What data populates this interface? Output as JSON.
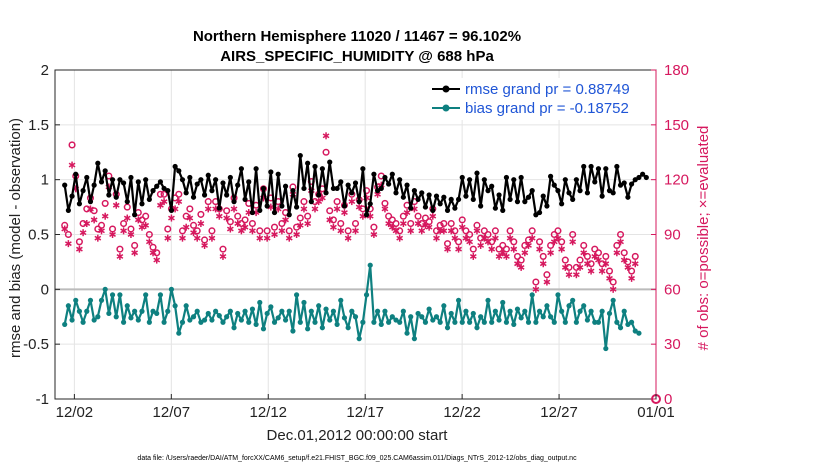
{
  "chart_data": {
    "type": "line",
    "title_line1": "Northern Hemisphere 11020 / 11467 = 96.102%",
    "title_line2": "AIRS_SPECIFIC_HUMIDITY @ 688 hPa",
    "xlabel": "Dec.01,2012 00:00:00 start",
    "ylabel_left": "rmse and bias (model - observation)",
    "ylabel_right": "# of obs: o=possible; ×=evaluated",
    "footer": "data file: /Users/raeder/DAI/ATM_forcXX/CAM6_setup/f.e21.FHIST_BGC.f09_025.CAM6assim.011/Diags_NTrS_2012-12/obs_diag_output.nc",
    "x_ticks": [
      "12/02",
      "12/07",
      "12/12",
      "12/17",
      "12/22",
      "12/27",
      "01/01"
    ],
    "x_tick_days": [
      1,
      6,
      11,
      16,
      21,
      26,
      31
    ],
    "xlim": [
      0,
      31
    ],
    "ylim_left": [
      -1,
      2
    ],
    "y_ticks_left": [
      "-1",
      "-0.5",
      "0",
      "0.5",
      "1",
      "1.5",
      "2"
    ],
    "ylim_right": [
      0,
      180
    ],
    "y_ticks_right": [
      "0",
      "30",
      "60",
      "90",
      "120",
      "150",
      "180"
    ],
    "colors": {
      "rmse": "#000000",
      "bias": "#0e8080",
      "obs": "#d6185e",
      "legend_text": "#1f55d6",
      "zero_line": "#bbbbbb",
      "grid": "#e4e4e4"
    },
    "series": [
      {
        "name": "rmse grand pr = 0.88749",
        "axis": "left",
        "color": "#000000",
        "values": [
          0.95,
          0.72,
          0.85,
          1.05,
          0.78,
          0.9,
          1.02,
          0.8,
          0.95,
          1.15,
          0.98,
          1.08,
          0.86,
          1.0,
          0.84,
          1.0,
          0.97,
          0.8,
          1.02,
          0.68,
          0.98,
          0.78,
          1.0,
          0.82,
          0.9,
          0.94,
          0.98,
          0.92,
          0.9,
          0.72,
          1.12,
          1.08,
          1.0,
          0.88,
          1.02,
          0.84,
          0.96,
          1.0,
          0.86,
          1.04,
          0.9,
          1.0,
          0.74,
          0.97,
          0.86,
          1.02,
          0.8,
          0.95,
          1.1,
          0.82,
          0.98,
          0.7,
          1.1,
          0.72,
          0.92,
          0.76,
          1.07,
          0.7,
          1.05,
          0.76,
          0.94,
          0.68,
          0.9,
          0.75,
          1.22,
          0.92,
          1.15,
          0.8,
          1.12,
          0.86,
          1.1,
          0.88,
          1.16,
          0.92,
          0.92,
          0.98,
          0.76,
          0.95,
          0.88,
          0.97,
          0.8,
          1.1,
          0.68,
          0.78,
          1.05,
          0.9,
          0.92,
          1.02,
          0.96,
          1.05,
          0.88,
          1.0,
          0.84,
          0.95,
          0.74,
          0.9,
          0.82,
          0.88,
          0.75,
          0.86,
          0.72,
          0.85,
          0.78,
          0.84,
          0.72,
          0.82,
          0.74,
          0.82,
          1.02,
          0.85,
          1.0,
          0.82,
          1.06,
          0.76,
          1.0,
          0.9,
          0.94,
          0.74,
          0.86,
          0.72,
          1.02,
          0.82,
          1.0,
          0.8,
          1.02,
          0.8,
          0.84,
          0.9,
          0.68,
          0.7,
          0.85,
          0.76,
          1.03,
          0.95,
          0.9,
          0.78,
          1.0,
          0.88,
          0.82,
          1.0,
          0.9,
          1.12,
          0.88,
          1.12,
          0.98,
          1.1,
          0.85,
          1.1,
          0.9,
          0.88,
          1.12,
          0.95,
          0.97,
          0.84,
          0.96,
          1.0,
          1.02,
          1.05,
          1.02
        ]
      },
      {
        "name": "bias grand pr = -0.18752",
        "axis": "left",
        "color": "#0e8080",
        "values": [
          -0.32,
          -0.15,
          -0.28,
          -0.1,
          -0.2,
          -0.3,
          -0.2,
          -0.1,
          -0.28,
          -0.25,
          -0.1,
          0.0,
          -0.22,
          -0.05,
          -0.25,
          -0.05,
          -0.3,
          -0.15,
          -0.26,
          -0.2,
          -0.28,
          -0.2,
          -0.05,
          -0.3,
          -0.2,
          -0.22,
          -0.05,
          -0.3,
          -0.2,
          0.0,
          -0.15,
          -0.4,
          -0.3,
          -0.15,
          -0.28,
          -0.25,
          -0.2,
          -0.3,
          -0.28,
          -0.22,
          -0.28,
          -0.2,
          -0.24,
          -0.3,
          -0.25,
          -0.2,
          -0.35,
          -0.22,
          -0.28,
          -0.2,
          -0.3,
          -0.18,
          -0.32,
          -0.12,
          -0.36,
          -0.22,
          -0.16,
          -0.3,
          -0.26,
          -0.2,
          -0.28,
          -0.2,
          -0.38,
          -0.05,
          -0.3,
          -0.12,
          -0.36,
          -0.2,
          -0.3,
          -0.15,
          -0.35,
          -0.18,
          -0.28,
          -0.2,
          -0.32,
          -0.1,
          -0.26,
          -0.35,
          -0.2,
          -0.25,
          -0.45,
          -0.3,
          -0.05,
          0.22,
          -0.3,
          -0.2,
          -0.32,
          -0.2,
          -0.3,
          -0.25,
          -0.28,
          -0.3,
          -0.2,
          -0.4,
          -0.25,
          -0.45,
          -0.22,
          -0.25,
          -0.3,
          -0.18,
          -0.28,
          -0.25,
          -0.3,
          -0.15,
          -0.35,
          -0.22,
          -0.3,
          -0.1,
          -0.3,
          -0.2,
          -0.3,
          -0.22,
          -0.35,
          -0.25,
          -0.3,
          -0.1,
          -0.3,
          -0.2,
          -0.28,
          -0.12,
          -0.3,
          -0.2,
          -0.32,
          -0.18,
          -0.26,
          -0.2,
          -0.3,
          -0.05,
          -0.3,
          -0.2,
          -0.25,
          -0.15,
          -0.25,
          -0.3,
          -0.05,
          -0.2,
          -0.3,
          -0.15,
          -0.1,
          -0.3,
          -0.2,
          -0.15,
          -0.28,
          -0.2,
          -0.3,
          -0.3,
          -0.2,
          -0.54,
          -0.22,
          -0.1,
          -0.3,
          -0.35,
          -0.2,
          -0.32,
          -0.3,
          -0.38,
          -0.4
        ]
      },
      {
        "name": "obs possible",
        "axis": "right",
        "marker": "o",
        "color": "#d6185e",
        "values": [
          95,
          90,
          139,
          122,
          86,
          96,
          104,
          110,
          103,
          93,
          95,
          107,
          122,
          93,
          112,
          82,
          96,
          105,
          93,
          84,
          102,
          98,
          100,
          90,
          83,
          80,
          112,
          112,
          93,
          104,
          110,
          112,
          92,
          100,
          104,
          95,
          92,
          101,
          87,
          108,
          92,
          108,
          104,
          82,
          103,
          97,
          110,
          100,
          96,
          98,
          107,
          96,
          106,
          92,
          115,
          92,
          110,
          94,
          108,
          96,
          102,
          92,
          116,
          94,
          99,
          108,
          100,
          119,
          108,
          112,
          115,
          135,
          103,
          98,
          108,
          96,
          106,
          92,
          112,
          96,
          109,
          104,
          114,
          104,
          94,
          116,
          122,
          107,
          100,
          98,
          96,
          92,
          100,
          106,
          96,
          108,
          100,
          96,
          99,
          97,
          104,
          92,
          95,
          96,
          85,
          96,
          92,
          86,
          98,
          92,
          90,
          82,
          95,
          88,
          92,
          90,
          86,
          92,
          82,
          84,
          82,
          92,
          86,
          78,
          76,
          84,
          87,
          92,
          64,
          86,
          78,
          68,
          84,
          90,
          92,
          86,
          76,
          72,
          90,
          72,
          76,
          84,
          78,
          74,
          82,
          80,
          74,
          78,
          70,
          64,
          84,
          90,
          80,
          75,
          70,
          78
        ]
      },
      {
        "name": "obs evaluated",
        "axis": "right",
        "marker": "*",
        "color": "#d6185e",
        "values": [
          93,
          85,
          128,
          115,
          82,
          91,
          96,
          104,
          98,
          88,
          92,
          100,
          116,
          90,
          106,
          78,
          92,
          99,
          90,
          80,
          98,
          94,
          95,
          86,
          80,
          76,
          106,
          108,
          88,
          99,
          104,
          108,
          88,
          94,
          99,
          91,
          88,
          96,
          84,
          104,
          88,
          104,
          100,
          78,
          99,
          93,
          104,
          96,
          92,
          94,
          102,
          92,
          102,
          88,
          110,
          88,
          105,
          90,
          104,
          92,
          98,
          88,
          112,
          90,
          95,
          104,
          96,
          114,
          104,
          108,
          110,
          144,
          98,
          94,
          104,
          92,
          102,
          88,
          108,
          92,
          105,
          100,
          110,
          100,
          90,
          112,
          117,
          104,
          96,
          94,
          92,
          88,
          96,
          102,
          92,
          104,
          96,
          92,
          95,
          94,
          100,
          88,
          92,
          92,
          82,
          92,
          88,
          82,
          94,
          88,
          86,
          78,
          92,
          84,
          88,
          86,
          82,
          88,
          78,
          80,
          78,
          88,
          82,
          74,
          72,
          80,
          84,
          88,
          60,
          82,
          74,
          64,
          80,
          86,
          88,
          82,
          72,
          68,
          86,
          68,
          72,
          80,
          74,
          70,
          78,
          76,
          70,
          74,
          66,
          60,
          80,
          86,
          76,
          72,
          66,
          74
        ]
      }
    ],
    "obs_extra_points": [
      {
        "day": 31,
        "value": 0,
        "marker": "o"
      }
    ]
  }
}
